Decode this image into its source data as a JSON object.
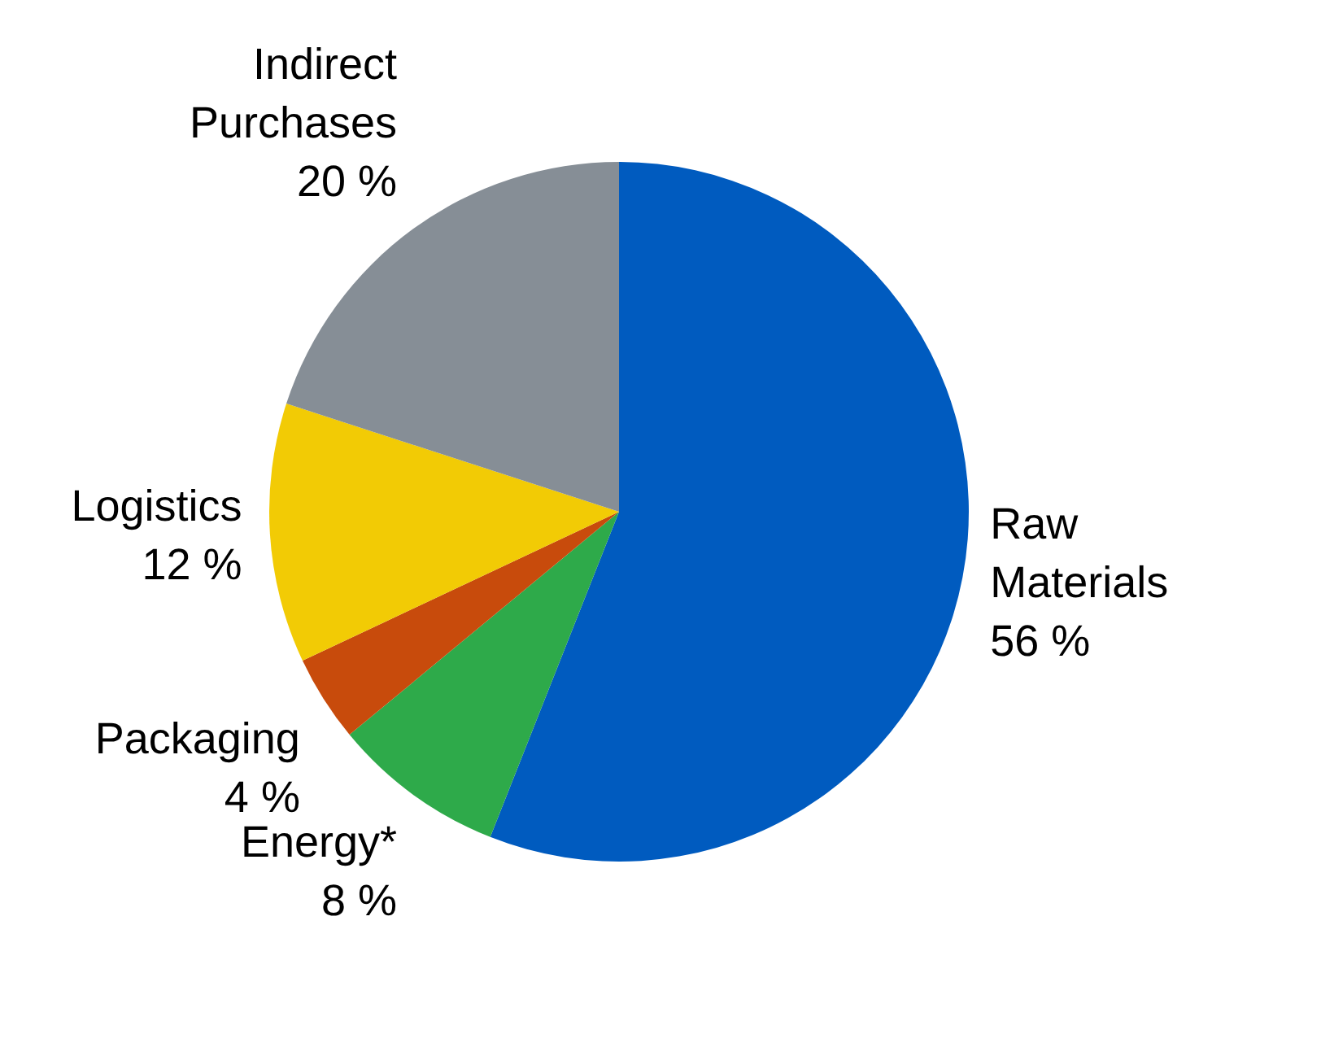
{
  "chart_data": {
    "type": "pie",
    "categories": [
      "Raw Materials",
      "Energy*",
      "Packaging",
      "Logistics",
      "Indirect Purchases"
    ],
    "values": [
      56,
      8,
      4,
      12,
      20
    ],
    "colors": [
      "#005bbf",
      "#2eaa4a",
      "#c84b0c",
      "#f2cb05",
      "#868e96"
    ],
    "value_labels": [
      "56 %",
      "8 %",
      "4 %",
      "12 %",
      "20 %"
    ]
  }
}
